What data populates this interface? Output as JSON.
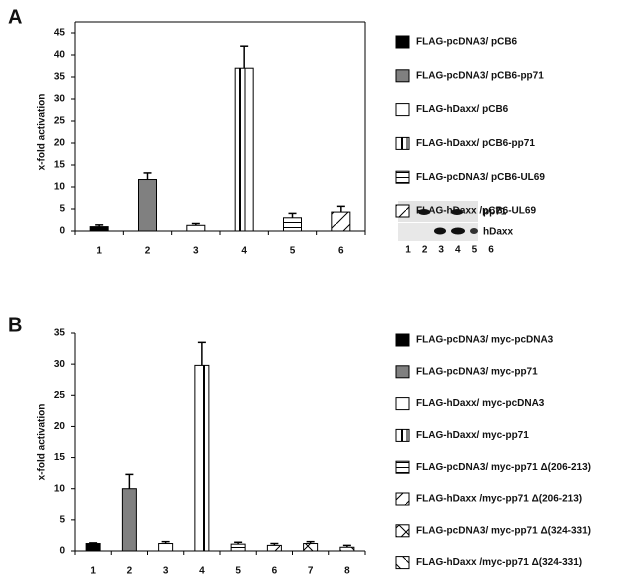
{
  "chart_data": [
    {
      "type": "bar",
      "panel": "A",
      "y_label": "x-fold activation",
      "categories": [
        "1",
        "2",
        "3",
        "4",
        "5",
        "6"
      ],
      "values": [
        1,
        11.7,
        1.3,
        37,
        3,
        4.3
      ],
      "errors": [
        0.4,
        1.5,
        0.4,
        5,
        1,
        1.3
      ],
      "legend": [
        "FLAG-pcDNA3/ pCB6",
        "FLAG-pcDNA3/ pCB6-pp71",
        "FLAG-hDaxx/ pCB6",
        "FLAG-hDaxx/ pCB6-pp71",
        "FLAG-pcDNA3/ pCB6-UL69",
        "FLAG-hDaxx /pCB6-UL69"
      ],
      "patterns": [
        "black",
        "gray",
        "empty",
        "vertical",
        "horizontal",
        "diagonal"
      ],
      "ylim": [
        0,
        45
      ],
      "yticks": [
        0,
        5,
        10,
        15,
        20,
        25,
        30,
        35,
        40,
        45
      ],
      "frame": true,
      "blot": {
        "bands": [
          "pp71",
          "hDaxx"
        ],
        "lanes": [
          "1",
          "2",
          "3",
          "4",
          "5",
          "6"
        ]
      }
    },
    {
      "type": "bar",
      "panel": "B",
      "y_label": "x-fold activation",
      "categories": [
        "1",
        "2",
        "3",
        "4",
        "5",
        "6",
        "7",
        "8"
      ],
      "values": [
        1.2,
        10,
        1.2,
        29.8,
        1.1,
        0.9,
        1.2,
        0.6
      ],
      "errors": [
        0.1,
        2.3,
        0.3,
        3.7,
        0.3,
        0.3,
        0.3,
        0.3
      ],
      "legend": [
        "FLAG-pcDNA3/ myc-pcDNA3",
        "FLAG-pcDNA3/ myc-pp71",
        "FLAG-hDaxx/ myc-pcDNA3",
        "FLAG-hDaxx/ myc-pp71",
        "FLAG-pcDNA3/ myc-pp71 Δ(206-213)",
        "FLAG-hDaxx /myc-pp71 Δ(206-213)",
        "FLAG-pcDNA3/ myc-pp71 Δ(324-331)",
        "FLAG-hDaxx /myc-pp71 Δ(324-331)"
      ],
      "patterns": [
        "black",
        "gray",
        "empty",
        "vertical",
        "horizontal",
        "diagonal",
        "cross",
        "backdiagonal"
      ],
      "ylim": [
        0,
        35
      ],
      "yticks": [
        0,
        5,
        10,
        15,
        20,
        25,
        30,
        35
      ],
      "frame": false
    }
  ]
}
